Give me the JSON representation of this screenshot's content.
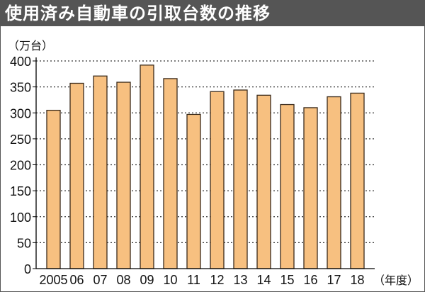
{
  "chart_data": {
    "type": "bar",
    "title": "使用済み自動車の引取台数の推移",
    "ylabel": "（万台）",
    "xlabel": "（年度）",
    "categories": [
      "2005",
      "06",
      "07",
      "08",
      "09",
      "10",
      "11",
      "12",
      "13",
      "14",
      "15",
      "16",
      "17",
      "18"
    ],
    "values": [
      305,
      357,
      371,
      359,
      392,
      366,
      297,
      341,
      344,
      334,
      316,
      310,
      331,
      338
    ],
    "ylim": [
      0,
      400
    ],
    "yticks": [
      0,
      50,
      100,
      150,
      200,
      250,
      300,
      350,
      400
    ],
    "grid": true,
    "bar_color": "#f7c080"
  }
}
